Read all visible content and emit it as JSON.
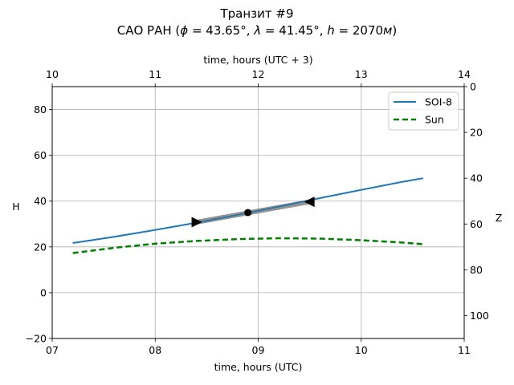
{
  "chart_data": {
    "type": "line",
    "title": "Транзит #9",
    "subtitle_parts": {
      "prefix": "САО РАН (",
      "phi_symbol": "ϕ",
      "phi_value": " = 43.65°, ",
      "lambda_symbol": "λ",
      "lambda_value": " = 41.45°, ",
      "h_symbol": "h",
      "h_value": " = 2070",
      "h_unit": "м",
      "suffix": ")"
    },
    "xlabel": "time, hours (UTC)",
    "ylabel": "H",
    "top_xlabel": "time, hours (UTC + 3)",
    "right_ylabel": "Z",
    "xlim": [
      7,
      11
    ],
    "ylim": [
      -20,
      90
    ],
    "top_xlim": [
      10,
      14
    ],
    "right_ylim": [
      110,
      0
    ],
    "xticks": [
      7,
      8,
      9,
      10,
      11
    ],
    "xtick_labels": [
      "07",
      "08",
      "09",
      "10",
      "11"
    ],
    "yticks": [
      -20,
      0,
      20,
      40,
      60,
      80
    ],
    "ytick_labels": [
      "−20",
      "0",
      "20",
      "40",
      "60",
      "80"
    ],
    "top_xticks": [
      10,
      11,
      12,
      13,
      14
    ],
    "top_xtick_labels": [
      "10",
      "11",
      "12",
      "13",
      "14"
    ],
    "right_yticks": [
      0,
      20,
      40,
      60,
      80,
      100
    ],
    "right_ytick_labels": [
      "0",
      "20",
      "40",
      "60",
      "80",
      "100"
    ],
    "grid": true,
    "legend_position": "top-right",
    "series": [
      {
        "name": "SOI-8",
        "style": "solid",
        "color": "#1f77b4",
        "x": [
          7.2,
          7.6,
          8.0,
          8.4,
          8.8,
          9.2,
          9.6,
          10.0,
          10.4,
          10.6
        ],
        "y": [
          21.7,
          24.4,
          27.4,
          30.6,
          34.0,
          37.6,
          41.3,
          44.9,
          48.4,
          50.0
        ]
      },
      {
        "name": "Sun",
        "style": "dashed",
        "color": "#008000",
        "x": [
          7.2,
          7.6,
          8.0,
          8.4,
          8.8,
          9.2,
          9.6,
          10.0,
          10.4,
          10.6
        ],
        "y": [
          17.3,
          19.6,
          21.4,
          22.6,
          23.4,
          23.8,
          23.6,
          22.9,
          21.9,
          21.2
        ]
      }
    ],
    "transit_segment": {
      "color": "#808080",
      "x": [
        8.4,
        9.5
      ],
      "y": [
        30.8,
        39.7
      ]
    },
    "markers": [
      {
        "name": "start",
        "shape": "triangle-right",
        "x": 8.4,
        "y": 30.8
      },
      {
        "name": "mid",
        "shape": "circle",
        "x": 8.9,
        "y": 35.0
      },
      {
        "name": "end",
        "shape": "triangle-left",
        "x": 9.5,
        "y": 39.7
      }
    ]
  }
}
